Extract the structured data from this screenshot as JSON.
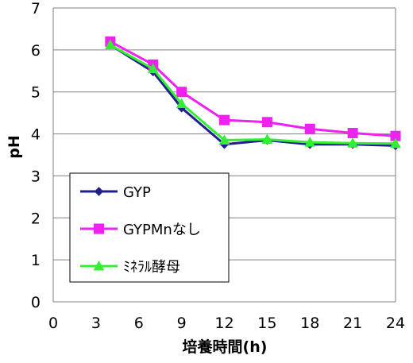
{
  "chart_data": {
    "type": "line",
    "title": "",
    "xlabel": "培養時間(h)",
    "ylabel": "pH",
    "xlim": [
      0,
      24
    ],
    "ylim": [
      0,
      7
    ],
    "x_ticks": [
      0,
      3,
      6,
      9,
      12,
      15,
      18,
      21,
      24
    ],
    "y_ticks": [
      0,
      1,
      2,
      3,
      4,
      5,
      6,
      7
    ],
    "grid": "horizontal",
    "legend_position": "bottom-left inside plot",
    "x": [
      4,
      7,
      9,
      12,
      15,
      18,
      21,
      24
    ],
    "series": [
      {
        "name": "GYP",
        "color": "#1f1f8f",
        "marker": "diamond",
        "values": [
          6.12,
          5.48,
          4.62,
          3.75,
          3.85,
          3.75,
          3.75,
          3.72
        ]
      },
      {
        "name": "GYPMnなし",
        "color": "#ee22ee",
        "marker": "square",
        "values": [
          6.2,
          5.65,
          5.0,
          4.33,
          4.28,
          4.12,
          4.02,
          3.95
        ]
      },
      {
        "name": "ﾐﾈﾗﾙ酵母",
        "color": "#33ee33",
        "marker": "triangle",
        "values": [
          6.12,
          5.55,
          4.72,
          3.85,
          3.87,
          3.8,
          3.78,
          3.77
        ]
      }
    ]
  }
}
